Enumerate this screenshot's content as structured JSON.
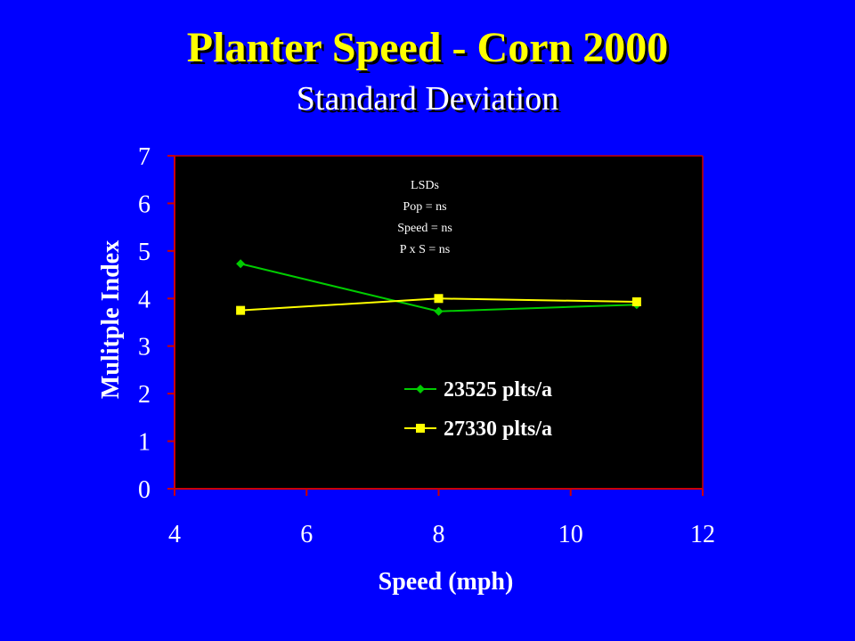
{
  "slide": {
    "title": "Planter Speed - Corn 2000",
    "subtitle": "Standard Deviation"
  },
  "chart_data": {
    "type": "line",
    "xlabel": "Speed (mph)",
    "ylabel": "Mulitple Index",
    "xlim": [
      4,
      12
    ],
    "ylim": [
      0,
      7
    ],
    "x_ticks": [
      4,
      6,
      8,
      10,
      12
    ],
    "y_ticks": [
      0,
      1,
      2,
      3,
      4,
      5,
      6,
      7
    ],
    "grid": false,
    "legend_position": "center-right",
    "plot_background": "#000000",
    "axis_color": "#cc0000",
    "annotation": [
      "LSDs",
      "Pop = ns",
      "Speed = ns",
      "P x S = ns"
    ],
    "series": [
      {
        "name": "23525 plts/a",
        "color": "#00cc00",
        "marker": "diamond",
        "x": [
          5,
          8,
          11
        ],
        "y": [
          4.73,
          3.73,
          3.87
        ]
      },
      {
        "name": "27330 plts/a",
        "color": "#ffff00",
        "marker": "square",
        "x": [
          5,
          8,
          11
        ],
        "y": [
          3.75,
          4.0,
          3.93
        ]
      }
    ]
  }
}
